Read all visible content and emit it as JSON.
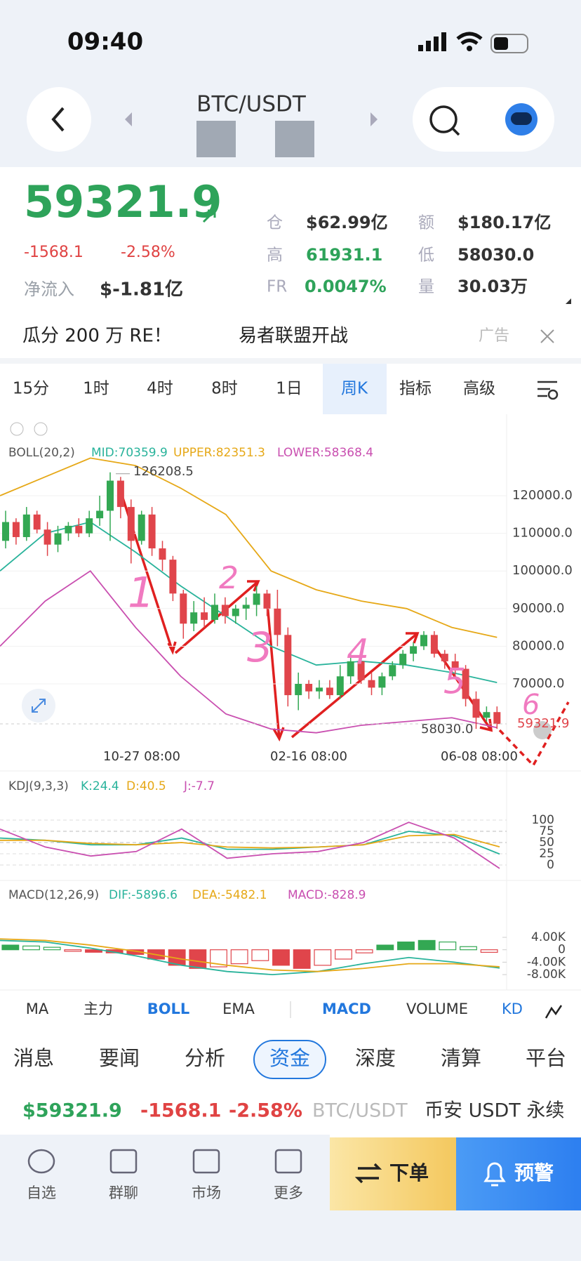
{
  "status": {
    "time": "09:40"
  },
  "header": {
    "pair": "BTC/USDT"
  },
  "stats": {
    "price": "59321.9",
    "change": "-1568.1",
    "pct": "-2.58%",
    "netflow_label": "净流入",
    "netflow": "$-1.81亿",
    "items": [
      {
        "label": "仓",
        "value": "$62.99亿"
      },
      {
        "label": "额",
        "value": "$180.17亿"
      },
      {
        "label": "高",
        "value": "61931.1"
      },
      {
        "label": "低",
        "value": "58030.0"
      },
      {
        "label": "FR",
        "value": "0.0047%"
      },
      {
        "label": "量",
        "value": "30.03万"
      }
    ]
  },
  "banner": {
    "text": "瓜分 200 万 RE！",
    "text2": "易者联盟开战",
    "ad": "广告"
  },
  "intervals": {
    "items": [
      "15分",
      "1时",
      "4时",
      "8时",
      "1日",
      "周K",
      "指标",
      "高级"
    ],
    "active": 5
  },
  "chart_data": {
    "type": "candlestick",
    "boll_label": [
      "BOLL(20,2)",
      "MID:70359.9",
      "UPPER:82351.3",
      "LOWER:58368.4"
    ],
    "ylim": [
      52000,
      131500
    ],
    "yticks": [
      {
        "value": 120000,
        "label": "120000.0"
      },
      {
        "value": 110000,
        "label": "110000.0"
      },
      {
        "value": 100000,
        "label": "100000.0"
      },
      {
        "value": 90000,
        "label": "90000.0"
      },
      {
        "value": 80000,
        "label": "80000.0"
      },
      {
        "value": 70000,
        "label": "70000.0"
      }
    ],
    "max_label": "126208.5",
    "min_label": "58030.0",
    "last_label": "59321.9",
    "x_labels": [
      "10-27 08:00",
      "02-16 08:00",
      "06-08 08:00"
    ],
    "annotations": [
      "1",
      "2",
      "3",
      "4",
      "5",
      "6"
    ],
    "candles": [
      [
        108000,
        116000,
        106000,
        113000
      ],
      [
        113000,
        114000,
        107000,
        109000
      ],
      [
        109000,
        117000,
        108000,
        115000
      ],
      [
        115000,
        116000,
        110000,
        111000
      ],
      [
        111000,
        113000,
        104000,
        107000
      ],
      [
        107000,
        112000,
        105000,
        110000
      ],
      [
        110000,
        113000,
        108000,
        112000
      ],
      [
        112000,
        114000,
        109000,
        110000
      ],
      [
        110000,
        116000,
        109000,
        114000
      ],
      [
        114000,
        120000,
        112000,
        116000
      ],
      [
        116000,
        126208.5,
        108000,
        124000
      ],
      [
        124000,
        125000,
        114000,
        117000
      ],
      [
        117000,
        119000,
        102000,
        108000
      ],
      [
        108000,
        116000,
        107000,
        115000
      ],
      [
        115000,
        117000,
        104000,
        106000
      ],
      [
        106000,
        108000,
        100000,
        103000
      ],
      [
        103000,
        104000,
        92000,
        94000
      ],
      [
        94000,
        95000,
        82000,
        86000
      ],
      [
        86000,
        92000,
        84000,
        89000
      ],
      [
        89000,
        93000,
        85000,
        87000
      ],
      [
        87000,
        94000,
        86000,
        91000
      ],
      [
        91000,
        93000,
        86000,
        88000
      ],
      [
        88000,
        91000,
        86000,
        90000
      ],
      [
        90000,
        93000,
        87000,
        91000
      ],
      [
        91000,
        96000,
        88000,
        94000
      ],
      [
        94000,
        95000,
        88000,
        90000
      ],
      [
        90000,
        95000,
        80000,
        83000
      ],
      [
        83000,
        85000,
        64000,
        67000
      ],
      [
        67000,
        73000,
        63000,
        70000
      ],
      [
        70000,
        71000,
        66000,
        68000
      ],
      [
        68000,
        71000,
        66000,
        69000
      ],
      [
        69000,
        71000,
        66000,
        67000
      ],
      [
        67000,
        75000,
        66000,
        72000
      ],
      [
        72000,
        78000,
        70000,
        76000
      ],
      [
        76000,
        77000,
        70000,
        71000
      ],
      [
        71000,
        73000,
        67000,
        69000
      ],
      [
        69000,
        73000,
        67000,
        72000
      ],
      [
        72000,
        76000,
        71000,
        75000
      ],
      [
        75000,
        79000,
        74000,
        78000
      ],
      [
        78000,
        81000,
        76000,
        80000
      ],
      [
        80000,
        84000,
        79000,
        83000
      ],
      [
        83000,
        84000,
        77000,
        78000
      ],
      [
        78000,
        79000,
        74000,
        76000
      ],
      [
        76000,
        78000,
        72000,
        74000
      ],
      [
        74000,
        75000,
        64000,
        66000
      ],
      [
        66000,
        68000,
        58030,
        61000
      ],
      [
        61000,
        64000,
        60000,
        62500
      ],
      [
        62500,
        64000,
        58030,
        59321.9
      ]
    ],
    "boll": {
      "upper": [
        120000,
        125000,
        130000,
        128000,
        122000,
        115000,
        100000,
        95000,
        92000,
        90000,
        85000,
        82351.3
      ],
      "mid": [
        100000,
        110000,
        113000,
        105000,
        96000,
        88000,
        80000,
        75000,
        76000,
        75000,
        73000,
        70359.9
      ],
      "lower": [
        80000,
        92000,
        100000,
        85000,
        72000,
        62000,
        58000,
        57000,
        59000,
        60000,
        61000,
        58368.4
      ]
    }
  },
  "kdj": {
    "label": [
      "KDJ(9,3,3)",
      "K:24.4",
      "D:40.5",
      "J:-7.7"
    ],
    "ylim": [
      -12,
      120
    ],
    "yticks": [
      100,
      75,
      50,
      25,
      0
    ],
    "K": [
      60,
      55,
      45,
      45,
      60,
      35,
      35,
      40,
      45,
      75,
      65,
      24.4
    ],
    "D": [
      55,
      55,
      48,
      45,
      50,
      40,
      38,
      40,
      45,
      65,
      68,
      40.5
    ],
    "J": [
      80,
      40,
      20,
      30,
      80,
      15,
      25,
      30,
      50,
      95,
      60,
      -7.7
    ]
  },
  "macd": {
    "label": [
      "MACD(12,26,9)",
      "DIF:-5896.6",
      "DEA:-5482.1",
      "MACD:-828.9"
    ],
    "ylim": [
      -9500,
      6000
    ],
    "yticks": [
      {
        "value": 4000,
        "label": "4.00K"
      },
      0,
      {
        "value": -4000,
        "label": "-4.00K"
      },
      {
        "value": -8000,
        "label": "-8.00K"
      }
    ],
    "hist": [
      1500,
      1200,
      800,
      -500,
      -800,
      -1000,
      -1500,
      -3000,
      -5000,
      -6000,
      -5500,
      -4500,
      -3500,
      -5000,
      -6000,
      -5000,
      -3000,
      -1000,
      1500,
      2500,
      3000,
      2500,
      1000,
      -828.9
    ],
    "dif": [
      3000,
      2500,
      500,
      -2000,
      -5000,
      -7000,
      -8000,
      -7000,
      -4500,
      -2500,
      -4000,
      -5896.6
    ],
    "dea": [
      3500,
      3000,
      1500,
      -500,
      -3000,
      -5000,
      -6500,
      -7000,
      -6000,
      -4500,
      -4500,
      -5482.1
    ]
  },
  "indicators": {
    "items": [
      "MA",
      "主力",
      "BOLL",
      "EMA",
      "MACD",
      "VOLUME",
      "KD"
    ]
  },
  "news_tabs": {
    "items": [
      "消息",
      "要闻",
      "分析",
      "资金",
      "深度",
      "清算",
      "平台"
    ],
    "active": 3
  },
  "ticker": {
    "price": "$59321.9",
    "change": "-1568.1",
    "pct": "-2.58%",
    "pair": "BTC/USDT",
    "market": "币安 USDT 永续"
  },
  "nav": {
    "items": [
      "自选",
      "群聊",
      "市场",
      "更多"
    ],
    "order": "下单",
    "alert": "预警"
  }
}
